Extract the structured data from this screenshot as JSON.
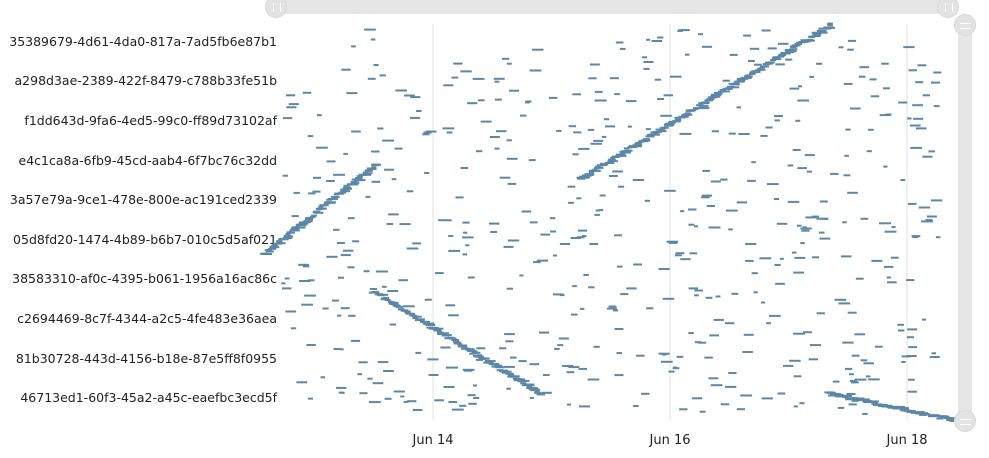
{
  "chart_data": {
    "type": "gantt",
    "title": "",
    "xlabel": "",
    "ylabel": "",
    "categories": [
      "35389679-4d61-4da0-817a-7ad5fb6e87b1",
      "a298d3ae-2389-422f-8479-c788b33fe51b",
      "f1dd643d-9fa6-4ed5-99c0-ff89d73102af",
      "e4c1ca8a-6fb9-45cd-aab4-6f7bc76c32dd",
      "3a57e79a-9ce1-478e-800e-ac191ced2339",
      "05d8fd20-1474-4b89-b6b7-010c5d5af021",
      "38583310-af0c-4395-b061-1956a16ac86c",
      "c2694469-8c7f-4344-a2c5-4fe483e36aea",
      "81b30728-443d-4156-b18e-87e5ff8f0955",
      "46713ed1-60f3-45a2-a45c-eaefbc3ecd5f"
    ],
    "x_ticks": [
      "Jun 14",
      "Jun 16",
      "Jun 18"
    ],
    "xlim": [
      "Jun 12 12:30",
      "Jun 18 09:00"
    ],
    "grid": "vertical",
    "color": "#5b87a8",
    "description_of_marks": "Many short horizontal task bars scattered across all rows, plus dense diagonal stair-step sequences",
    "sequences": [
      {
        "from": [
          "Jun 15 05:00",
          3.9
        ],
        "to": [
          "Jun 17 08:00",
          0.0
        ]
      },
      {
        "from": [
          "Jun 12 13:00",
          5.8
        ],
        "to": [
          "Jun 13 12:00",
          3.5
        ]
      },
      {
        "from": [
          "Jun 13 11:00",
          6.7
        ],
        "to": [
          "Jun 14 21:00",
          9.3
        ]
      },
      {
        "from": [
          "Jun 17 07:00",
          9.3
        ],
        "to": [
          "Jun 18 10:00",
          10.0
        ]
      }
    ]
  },
  "scrollbars": {
    "horizontal": "scrollbar",
    "vertical": "scrollbar"
  }
}
